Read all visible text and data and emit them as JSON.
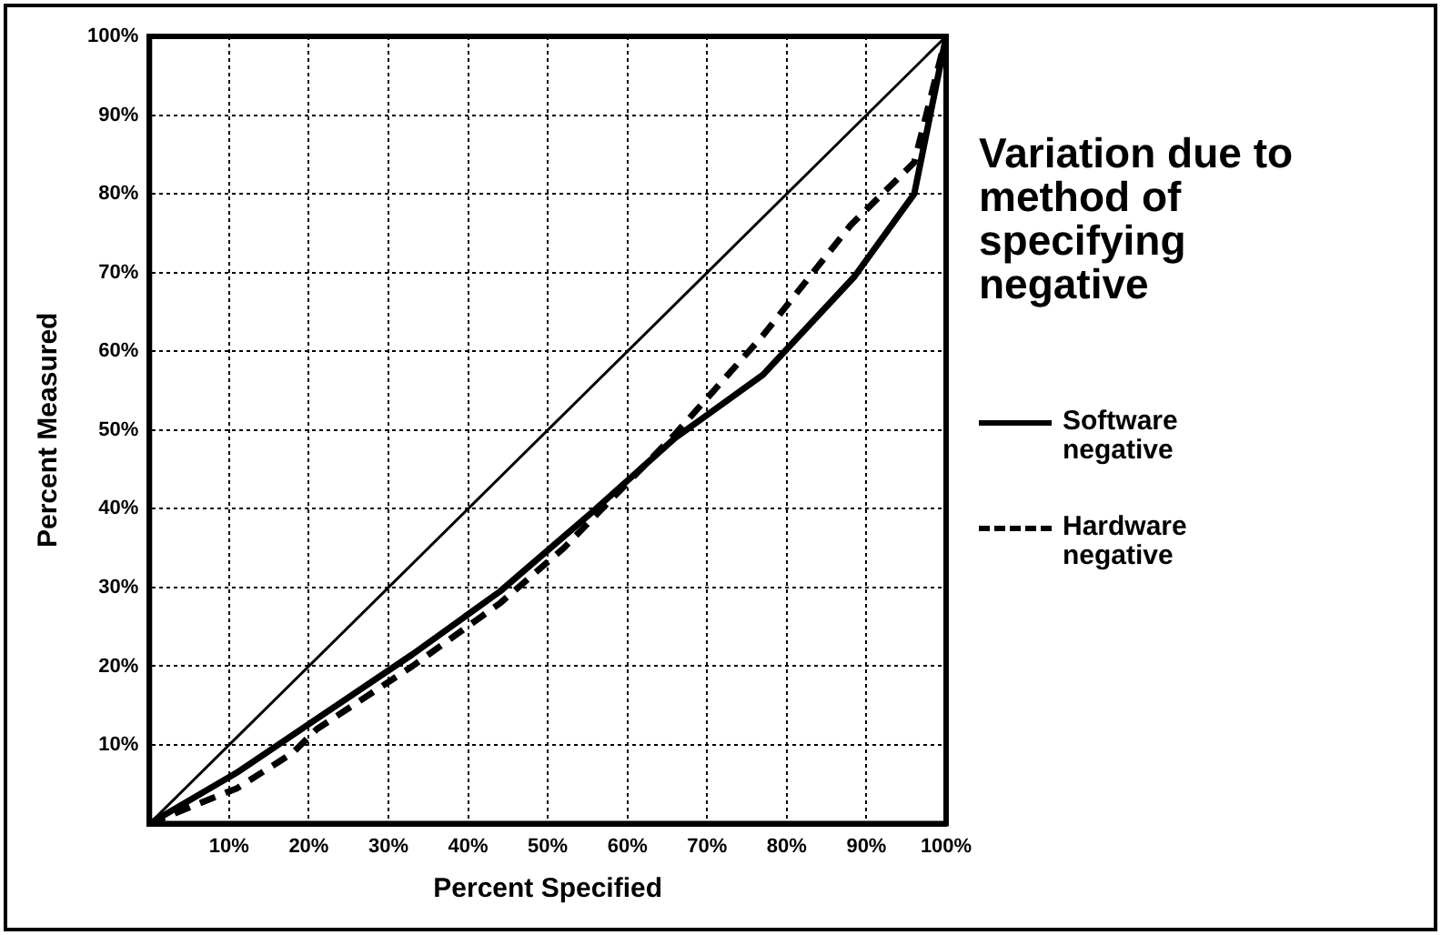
{
  "chart_data": {
    "type": "line",
    "title": "Variation due to method of specifying negative",
    "xlabel": "Percent Specified",
    "ylabel": "Percent Measured",
    "xlim": [
      0,
      100
    ],
    "ylim": [
      0,
      100
    ],
    "xticks": [
      {
        "value": 10,
        "label": "10%"
      },
      {
        "value": 20,
        "label": "20%"
      },
      {
        "value": 30,
        "label": "30%"
      },
      {
        "value": 40,
        "label": "40%"
      },
      {
        "value": 50,
        "label": "50%"
      },
      {
        "value": 60,
        "label": "60%"
      },
      {
        "value": 70,
        "label": "70%"
      },
      {
        "value": 80,
        "label": "80%"
      },
      {
        "value": 90,
        "label": "90%"
      },
      {
        "value": 100,
        "label": "100%"
      }
    ],
    "yticks": [
      {
        "value": 10,
        "label": "10%"
      },
      {
        "value": 20,
        "label": "20%"
      },
      {
        "value": 30,
        "label": "30%"
      },
      {
        "value": 40,
        "label": "40%"
      },
      {
        "value": 50,
        "label": "50%"
      },
      {
        "value": 60,
        "label": "60%"
      },
      {
        "value": 70,
        "label": "70%"
      },
      {
        "value": 80,
        "label": "80%"
      },
      {
        "value": 90,
        "label": "90%"
      },
      {
        "value": 100,
        "label": "100%"
      }
    ],
    "grid": true,
    "legend": "right",
    "marker": "none",
    "series": [
      {
        "color": "#000000",
        "line_style": "solid",
        "x": [
          0,
          100
        ],
        "values": [
          0,
          100
        ]
      },
      {
        "name": "Software negative",
        "color": "#000000",
        "line_style": "solid",
        "x": [
          0,
          11,
          22,
          33,
          44,
          55.5,
          66,
          77,
          88.5,
          96,
          100
        ],
        "values": [
          0,
          6.5,
          14,
          21.5,
          29.5,
          39.5,
          49,
          57,
          69.5,
          80,
          100
        ]
      },
      {
        "name": "Hardware negative",
        "color": "#000000",
        "line_style": "dashed",
        "x": [
          0,
          11,
          18,
          21,
          33,
          44,
          52,
          66,
          77,
          88,
          96,
          100
        ],
        "values": [
          0,
          4.5,
          9,
          12,
          20,
          28,
          35,
          49.5,
          62,
          76,
          84,
          100
        ]
      }
    ]
  }
}
